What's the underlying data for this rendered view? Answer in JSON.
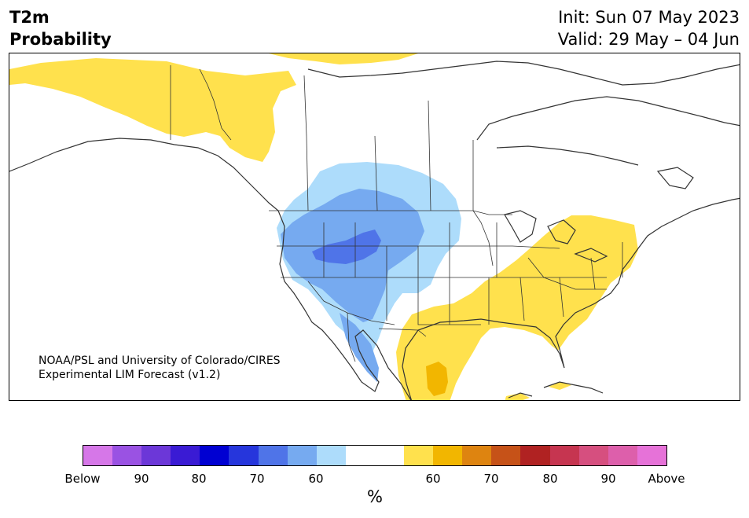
{
  "header": {
    "variable": "T2m",
    "product": "Probability",
    "init": "Init: Sun 07 May 2023",
    "valid": "Valid: 29 May – 04 Jun"
  },
  "credit": {
    "line1": "NOAA/PSL and University of Colorado/CIRES",
    "line2": "Experimental LIM Forecast (v1.2)"
  },
  "colorbar": {
    "unit": "%",
    "colors": [
      "#d677e8",
      "#9a52e3",
      "#6c37d8",
      "#3a1bd4",
      "#0000d2",
      "#2636dc",
      "#4f74e8",
      "#76aaf0",
      "#addcfb",
      "#ffffff",
      "#ffffff",
      "#ffe14d",
      "#f2b600",
      "#de8410",
      "#c65218",
      "#b02222",
      "#c63550",
      "#d64f7f",
      "#dd5fab",
      "#e672d8"
    ],
    "ticks": [
      "Below",
      "90",
      "80",
      "70",
      "60",
      "60",
      "70",
      "80",
      "90",
      "Above"
    ]
  },
  "map": {
    "colors": {
      "above_60": "#ffe14d",
      "above_70": "#f2b600",
      "below_60": "#addcfb",
      "below_70": "#76aaf0",
      "below_80": "#4f74e8",
      "border": "#333333"
    }
  }
}
